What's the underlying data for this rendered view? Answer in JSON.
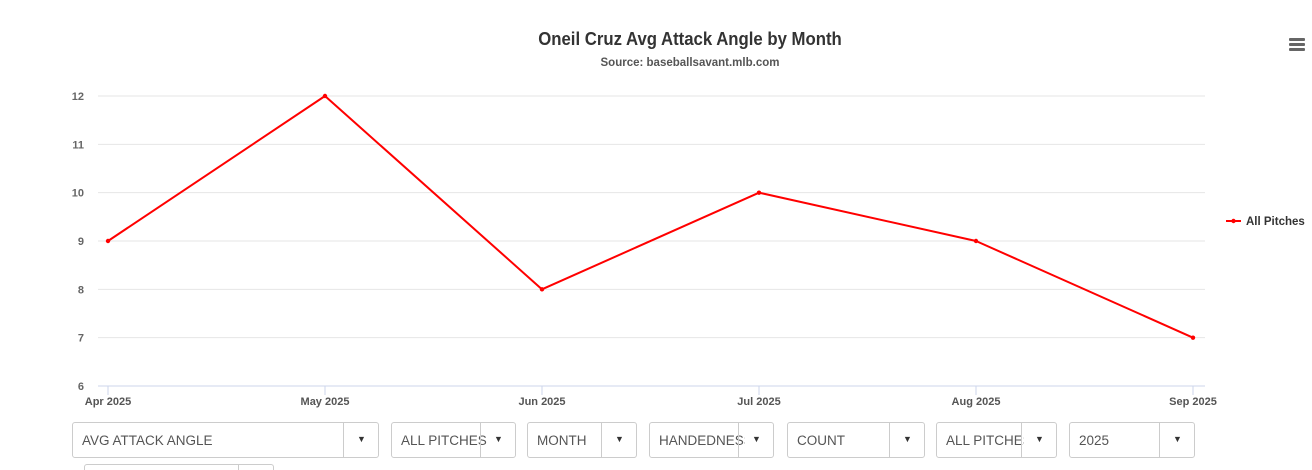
{
  "title": "Oneil Cruz Avg Attack Angle by Month",
  "subtitle": "Source: baseballsavant.mlb.com",
  "menu": {
    "icon": "hamburger-menu-icon"
  },
  "chart_data": {
    "type": "line",
    "title": "Oneil Cruz Avg Attack Angle by Month",
    "subtitle": "Source: baseballsavant.mlb.com",
    "categories": [
      "Apr 2025",
      "May 2025",
      "Jun 2025",
      "Jul 2025",
      "Aug 2025",
      "Sep 2025"
    ],
    "series": [
      {
        "name": "All Pitches",
        "values": [
          9,
          12,
          8,
          10,
          9,
          7
        ],
        "color": "#ff0000"
      }
    ],
    "yticks": [
      "6",
      "7",
      "8",
      "9",
      "10",
      "11",
      "12"
    ],
    "ylim": [
      6,
      12
    ],
    "xlabel": "",
    "ylabel": "",
    "grid": true,
    "legend": "right"
  },
  "controls": {
    "metric": "AVG ATTACK ANGLE",
    "pitch_type": "ALL PITCHES",
    "group_by": "MONTH",
    "handedness": "HANDEDNESS",
    "count": "COUNT",
    "pitch_filter": "ALL PITCHES",
    "season": "2025",
    "arrow": "▼"
  }
}
